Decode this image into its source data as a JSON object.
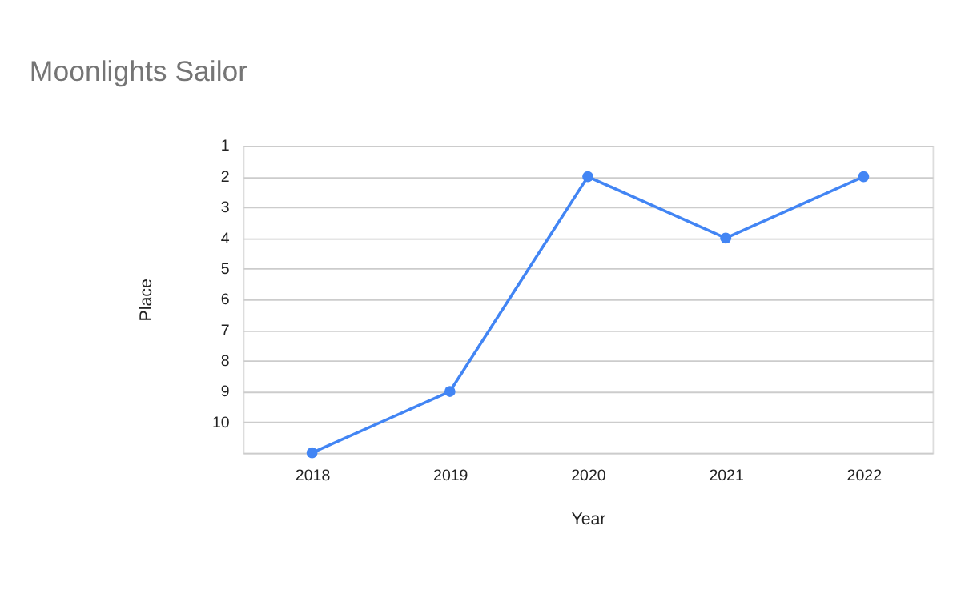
{
  "chart_data": {
    "type": "line",
    "title": "Moonlights Sailor",
    "xlabel": "Year",
    "ylabel": "Place",
    "categories": [
      "2018",
      "2019",
      "2020",
      "2021",
      "2022"
    ],
    "series": [
      {
        "color": "#4285f4",
        "values": [
          11,
          9,
          2,
          4,
          2
        ]
      }
    ],
    "ylim": [
      11,
      1
    ],
    "yticks": [
      1,
      2,
      3,
      4,
      5,
      6,
      7,
      8,
      9,
      10,
      {
        "value": 11,
        "label": null
      }
    ],
    "grid": "y",
    "marker": "circle",
    "line_style": "solid"
  }
}
